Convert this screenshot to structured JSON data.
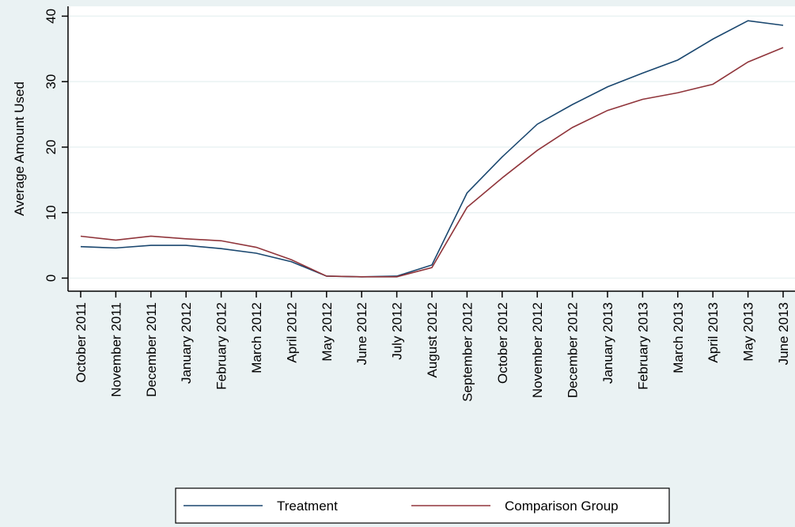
{
  "chart_data": {
    "type": "line",
    "y_label": "Average Amount Used",
    "categories": [
      "October 2011",
      "November 2011",
      "December 2011",
      "January 2012",
      "February 2012",
      "March 2012",
      "April 2012",
      "May 2012",
      "June 2012",
      "July 2012",
      "August 2012",
      "September 2012",
      "October 2012",
      "November 2012",
      "December 2012",
      "January 2013",
      "February 2013",
      "March 2013",
      "April 2013",
      "May 2013",
      "June 2013"
    ],
    "series": [
      {
        "name": "Treatment",
        "color": "#1a476f",
        "values": [
          4.8,
          4.6,
          5.0,
          5.0,
          4.5,
          3.8,
          2.5,
          0.3,
          0.2,
          0.3,
          2.0,
          13.0,
          18.5,
          23.5,
          26.5,
          29.2,
          31.3,
          33.3,
          36.5,
          39.3,
          38.6
        ]
      },
      {
        "name": "Comparison Group",
        "color": "#90353b",
        "values": [
          6.4,
          5.8,
          6.4,
          6.0,
          5.7,
          4.7,
          2.8,
          0.3,
          0.2,
          0.2,
          1.6,
          10.8,
          15.3,
          19.5,
          23.0,
          25.6,
          27.3,
          28.3,
          29.6,
          33.0,
          35.2
        ]
      }
    ],
    "ylim": [
      -2,
      41.5
    ],
    "yticks": [
      0,
      10,
      20,
      30,
      40
    ],
    "grid": true
  }
}
